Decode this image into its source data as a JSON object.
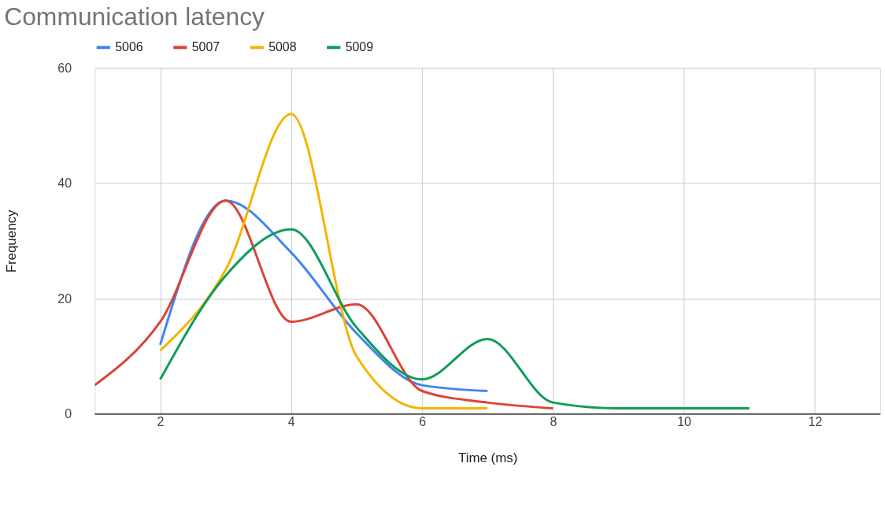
{
  "chart_data": {
    "type": "line",
    "title": "Communication latency",
    "xlabel": "Time (ms)",
    "ylabel": "Frequency",
    "xlim": [
      1,
      13
    ],
    "xticks": [
      2,
      4,
      6,
      8,
      10,
      12
    ],
    "ylim": [
      0,
      60
    ],
    "yticks": [
      0,
      20,
      40,
      60
    ],
    "grid": true,
    "legend": "top",
    "marker": "none",
    "line_style": "solid",
    "series": [
      {
        "name": "5006",
        "color": "#4285f4",
        "x": [
          2,
          3,
          4,
          5,
          6,
          7
        ],
        "values": [
          12,
          37,
          28,
          14,
          5,
          4
        ]
      },
      {
        "name": "5007",
        "color": "#db4437",
        "x": [
          1,
          2,
          3,
          4,
          5,
          6,
          7,
          8
        ],
        "values": [
          5,
          16,
          37,
          16,
          19,
          4,
          2,
          1
        ]
      },
      {
        "name": "5008",
        "color": "#f4b400",
        "x": [
          2,
          3,
          4,
          5,
          6,
          7
        ],
        "values": [
          11,
          25,
          52,
          10,
          1,
          1
        ]
      },
      {
        "name": "5009",
        "color": "#0f9d58",
        "x": [
          2,
          3,
          4,
          5,
          6,
          7,
          8,
          9,
          10,
          11
        ],
        "values": [
          6,
          24,
          32,
          15,
          6,
          13,
          2,
          1,
          1,
          1
        ]
      }
    ]
  }
}
